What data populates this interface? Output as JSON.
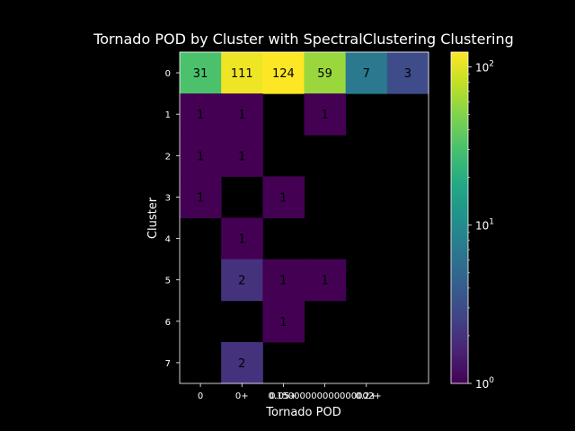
{
  "chart_data": {
    "type": "heatmap",
    "title": "Tornado POD by Cluster with SpectralClustering Clustering",
    "xlabel": "Tornado POD",
    "ylabel": "Cluster",
    "x_categories": [
      "0",
      "0+",
      "0.05+",
      "0.15000000000000002+",
      "0.2+",
      "0.25+"
    ],
    "x_tick_labels": [
      "0",
      "0+",
      "0.05+",
      "0.15000000000000002+",
      "0.2+"
    ],
    "y_categories": [
      "0",
      "1",
      "2",
      "3",
      "4",
      "5",
      "6",
      "7"
    ],
    "values": [
      [
        31,
        111,
        124,
        59,
        7,
        3
      ],
      [
        1,
        1,
        null,
        1,
        null,
        null
      ],
      [
        1,
        1,
        null,
        null,
        null,
        null
      ],
      [
        1,
        null,
        1,
        null,
        null,
        null
      ],
      [
        null,
        1,
        null,
        null,
        null,
        null
      ],
      [
        null,
        2,
        1,
        1,
        null,
        null
      ],
      [
        null,
        null,
        1,
        null,
        null,
        null
      ],
      [
        null,
        2,
        null,
        null,
        null,
        null
      ]
    ],
    "colormap": "viridis",
    "color_scale": "log",
    "color_range": [
      1,
      124
    ],
    "colorbar_ticks": [
      {
        "value": 1,
        "base": "10",
        "exp": "0"
      },
      {
        "value": 10,
        "base": "10",
        "exp": "1"
      },
      {
        "value": 100,
        "base": "10",
        "exp": "2"
      }
    ],
    "grid": false,
    "missing_color": "#000000"
  }
}
